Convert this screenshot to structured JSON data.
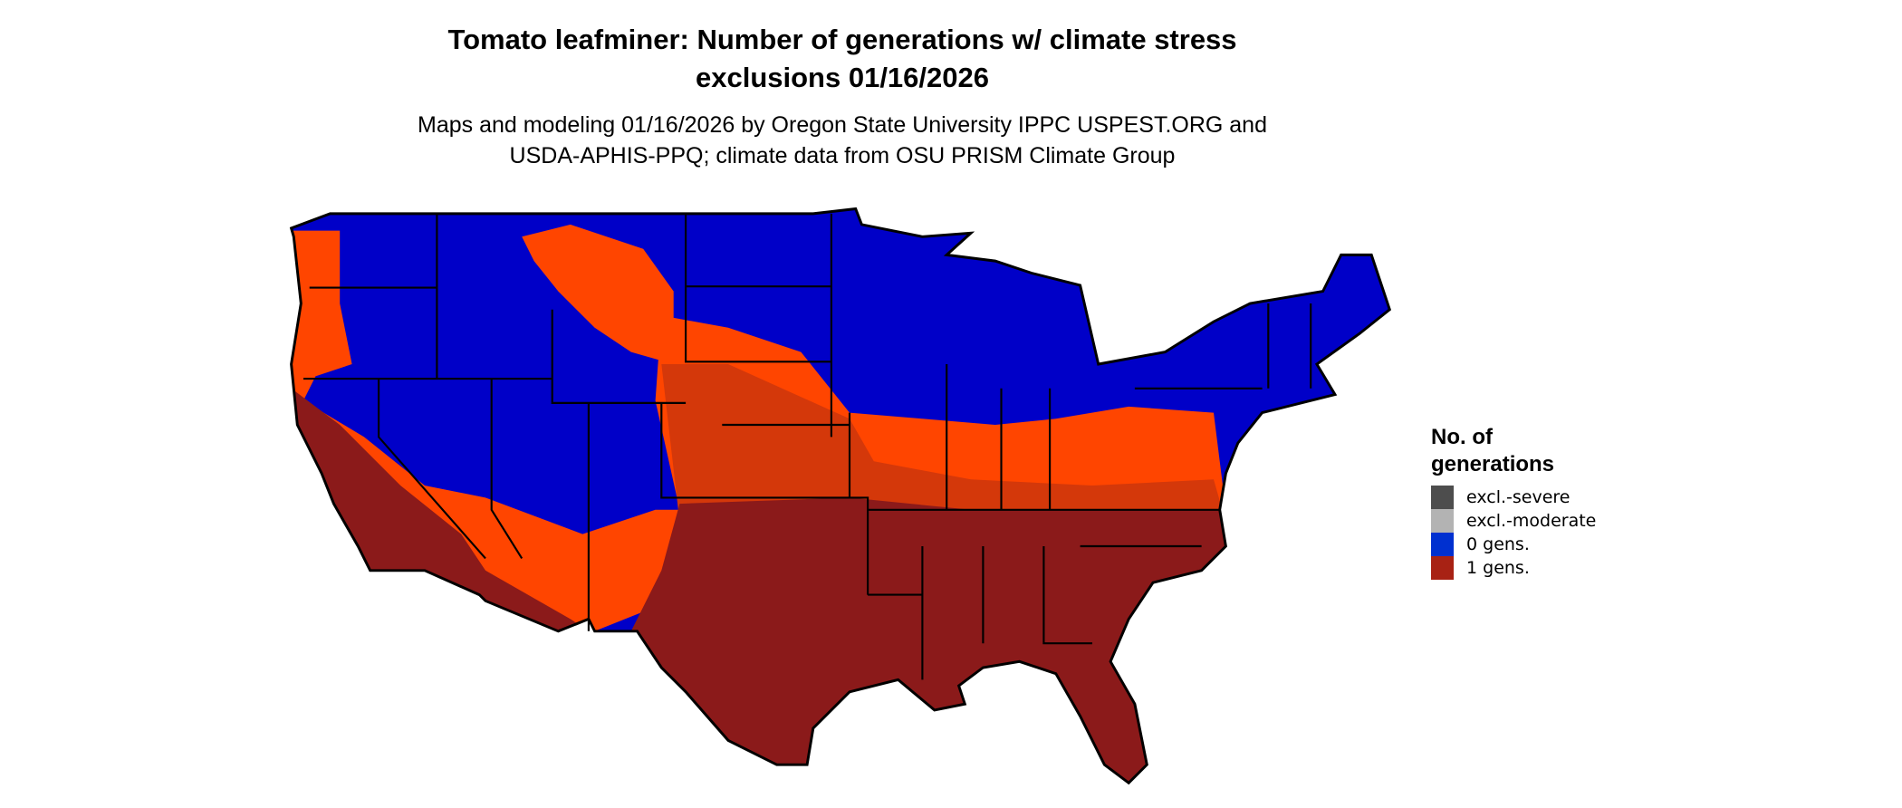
{
  "title": {
    "line1": "Tomato leafminer: Number of generations w/ climate stress",
    "line2": "exclusions 01/16/2026"
  },
  "subtitle": {
    "line1": "Maps and modeling 01/16/2026 by Oregon State University IPPC USPEST.ORG and",
    "line2": "USDA-APHIS-PPQ; climate data from OSU PRISM Climate Group"
  },
  "legend": {
    "title_line1": "No. of",
    "title_line2": "generations",
    "items": [
      {
        "label": "excl.-severe",
        "color": "#4d4d4d"
      },
      {
        "label": "excl.-moderate",
        "color": "#b3b3b3"
      },
      {
        "label": "0 gens.",
        "color": "#0030d0"
      },
      {
        "label": "1 gens.",
        "color": "#a82214"
      }
    ]
  },
  "map_colors": {
    "zero_gens": "#0000c8",
    "transition": "#ff4500",
    "mid": "#d4380a",
    "one_gen": "#8b1a1a",
    "border": "#000000"
  }
}
